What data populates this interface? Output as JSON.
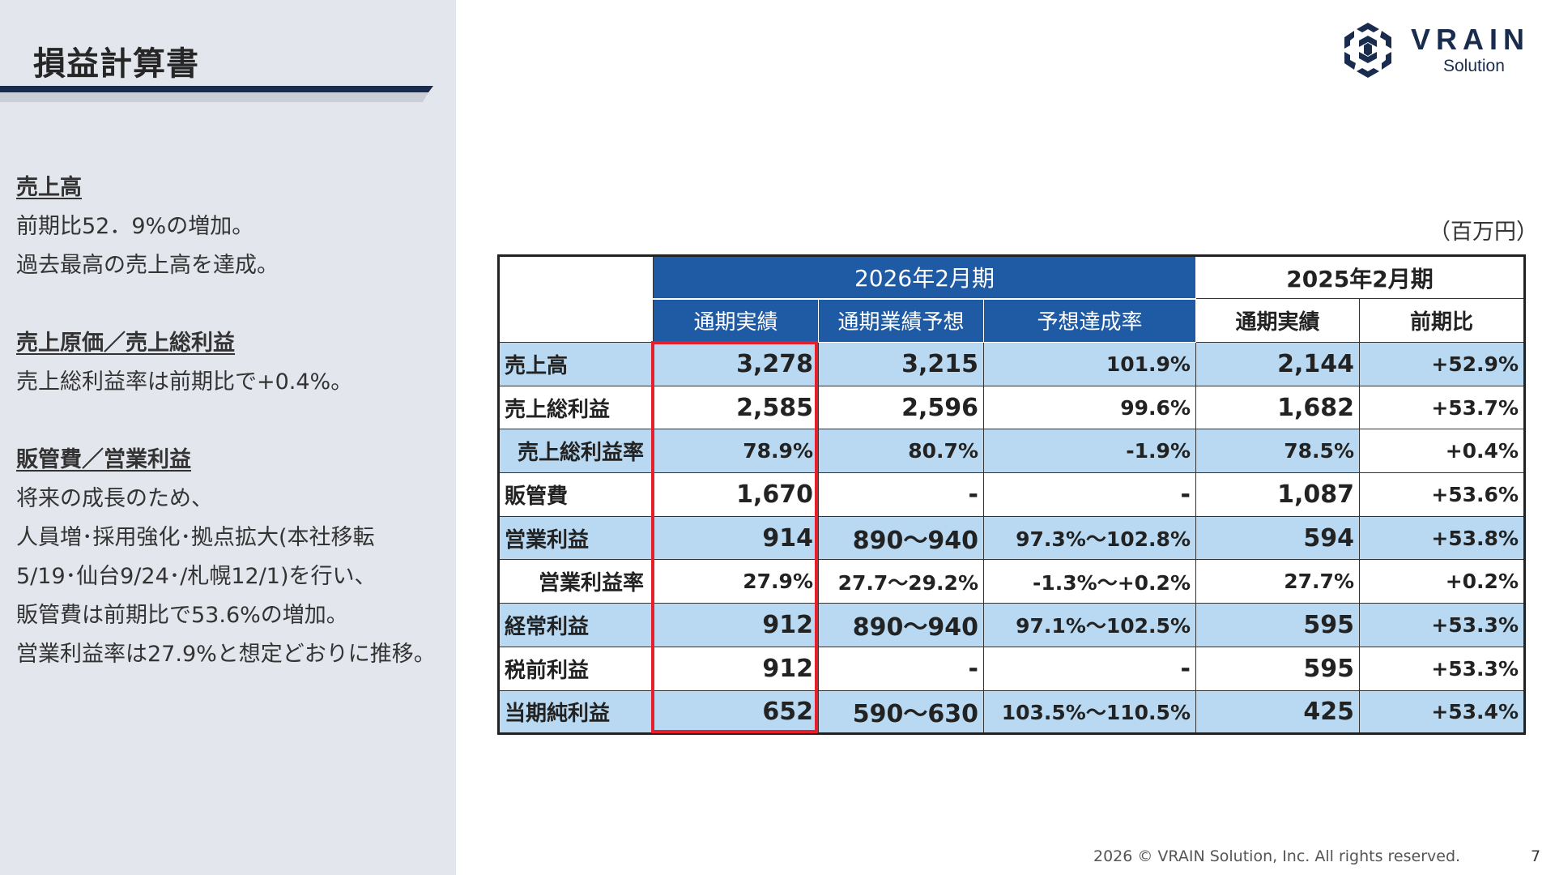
{
  "page_title": "損益計算書",
  "commentary": [
    {
      "heading": "売上高",
      "lines": [
        "前期比52．9%の増加。",
        "過去最高の売上高を達成。"
      ]
    },
    {
      "heading": "売上原価／売上総利益",
      "lines": [
        "売上総利益率は前期比で+0.4%。"
      ]
    },
    {
      "heading": "販管費／営業利益",
      "lines": [
        "将来の成長のため、",
        "人員増･採用強化･拠点拡大(本社移転",
        "5/19･仙台9/24･/札幌12/1)を行い、",
        "販管費は前期比で53.6%の増加。",
        "営業利益率は27.9%と想定どおりに推移。"
      ]
    }
  ],
  "logo": {
    "word": "VRAIN",
    "sub": "Solution"
  },
  "unit_label": "（百万円）",
  "table": {
    "group_2026": "2026年2月期",
    "group_2025": "2025年2月期",
    "sub_headers": [
      "通期実績",
      "通期業績予想",
      "予想達成率",
      "通期実績",
      "前期比"
    ],
    "rows": [
      {
        "label": "売上高",
        "cells": [
          "3,278",
          "3,215",
          "101.9%",
          "2,144",
          "+52.9%"
        ]
      },
      {
        "label": "売上総利益",
        "cells": [
          "2,585",
          "2,596",
          "99.6%",
          "1,682",
          "+53.7%"
        ]
      },
      {
        "label": "売上総利益率",
        "cells": [
          "78.9%",
          "80.7%",
          "-1.9%",
          "78.5%",
          "+0.4%"
        ]
      },
      {
        "label": "販管費",
        "cells": [
          "1,670",
          "-",
          "-",
          "1,087",
          "+53.6%"
        ]
      },
      {
        "label": "営業利益",
        "cells": [
          "914",
          "890～940",
          "97.3%～102.8%",
          "594",
          "+53.8%"
        ]
      },
      {
        "label": "営業利益率",
        "cells": [
          "27.9%",
          "27.7～29.2%",
          "-1.3%～+0.2%",
          "27.7%",
          "+0.2%"
        ]
      },
      {
        "label": "経常利益",
        "cells": [
          "912",
          "890～940",
          "97.1%～102.5%",
          "595",
          "+53.3%"
        ]
      },
      {
        "label": "税前利益",
        "cells": [
          "912",
          "-",
          "-",
          "595",
          "+53.3%"
        ]
      },
      {
        "label": "当期純利益",
        "cells": [
          "652",
          "590～630",
          "103.5%～110.5%",
          "425",
          "+53.4%"
        ]
      }
    ]
  },
  "footer": "2026 © VRAIN Solution, Inc. All rights reserved.",
  "page_number": "7",
  "colors": {
    "header_blue": "#1f5ba4",
    "row_shade": "#b8d9f1",
    "highlight_red": "#e5202c",
    "panel_gray": "#e3e6ec",
    "navy": "#1a2c4e"
  }
}
